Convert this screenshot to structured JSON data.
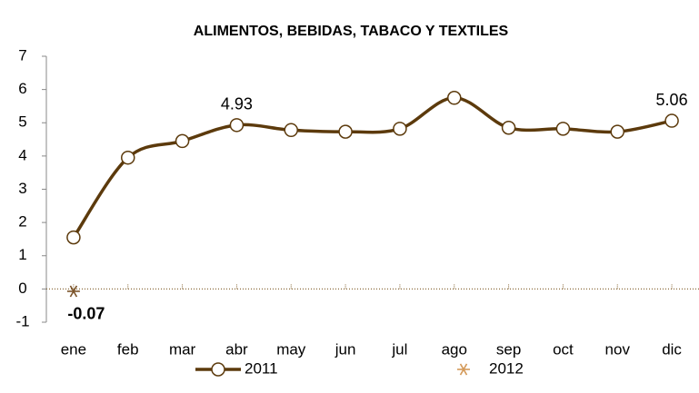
{
  "chart_data": {
    "type": "line",
    "title": "ALIMENTOS, BEBIDAS, TABACO Y TEXTILES",
    "categories": [
      "ene",
      "feb",
      "mar",
      "abr",
      "may",
      "jun",
      "jul",
      "ago",
      "sep",
      "oct",
      "nov",
      "dic"
    ],
    "series": [
      {
        "name": "2011",
        "color": "#5c3a0c",
        "marker": "circle",
        "values": [
          1.55,
          3.95,
          4.45,
          4.93,
          4.78,
          4.73,
          4.82,
          5.75,
          4.85,
          4.82,
          4.73,
          5.06
        ],
        "value_labels": [
          null,
          null,
          null,
          "4.93",
          null,
          null,
          null,
          null,
          null,
          null,
          null,
          "5.06"
        ]
      },
      {
        "name": "2012",
        "color": "#7a5228",
        "marker": "asterisk",
        "values": [
          -0.07,
          null,
          null,
          null,
          null,
          null,
          null,
          null,
          null,
          null,
          null,
          null
        ],
        "value_labels": [
          "-0.07",
          null,
          null,
          null,
          null,
          null,
          null,
          null,
          null,
          null,
          null,
          null
        ]
      }
    ],
    "ylim": [
      -1,
      7
    ],
    "yticks": [
      {
        "value": -1,
        "label": "-1"
      },
      0,
      1,
      2,
      3,
      4,
      5,
      6,
      7
    ],
    "legend": "bottom"
  }
}
